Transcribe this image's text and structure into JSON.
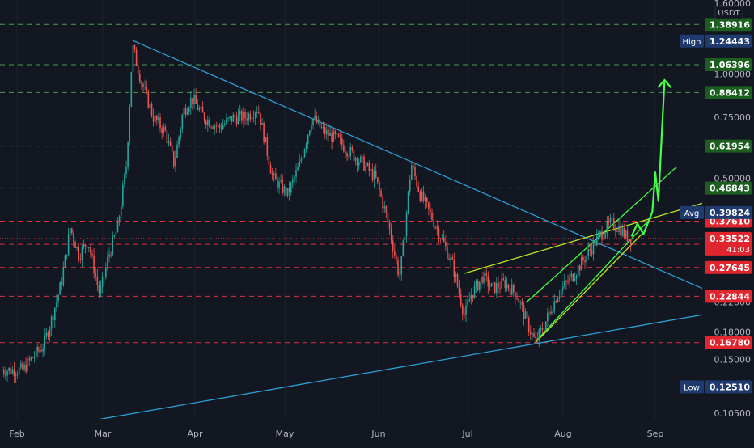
{
  "chart_data": {
    "type": "candlestick",
    "currency": "USDT",
    "scale": "log",
    "ylim": [
      0.1,
      1.6
    ],
    "x_ticks": [
      "Feb",
      "Mar",
      "Apr",
      "May",
      "Jun",
      "Jul",
      "Aug",
      "Sep"
    ],
    "y_ticks": [
      "1.60000",
      "1.00000",
      "0.75000",
      "0.50000",
      "0.22000",
      "0.18000",
      "0.15000",
      "0.10500"
    ],
    "y_tick_values": [
      1.6,
      1.0,
      0.75,
      0.5,
      0.22,
      0.18,
      0.15,
      0.105
    ],
    "price_path": [
      [
        "2024-01-27",
        0.14
      ],
      [
        "2024-02-03",
        0.14
      ],
      [
        "2024-02-07",
        0.155
      ],
      [
        "2024-02-10",
        0.165
      ],
      [
        "2024-02-13",
        0.2
      ],
      [
        "2024-02-16",
        0.25
      ],
      [
        "2024-02-19",
        0.36
      ],
      [
        "2024-02-22",
        0.3
      ],
      [
        "2024-02-25",
        0.33
      ],
      [
        "2024-02-29",
        0.23
      ],
      [
        "2024-03-03",
        0.3
      ],
      [
        "2024-03-06",
        0.36
      ],
      [
        "2024-03-09",
        0.55
      ],
      [
        "2024-03-11",
        1.2
      ],
      [
        "2024-03-14",
        0.95
      ],
      [
        "2024-03-18",
        0.75
      ],
      [
        "2024-03-22",
        0.68
      ],
      [
        "2024-03-25",
        0.55
      ],
      [
        "2024-03-28",
        0.78
      ],
      [
        "2024-03-31",
        0.85
      ],
      [
        "2024-04-04",
        0.75
      ],
      [
        "2024-04-09",
        0.7
      ],
      [
        "2024-04-14",
        0.75
      ],
      [
        "2024-04-18",
        0.75
      ],
      [
        "2024-04-22",
        0.8
      ],
      [
        "2024-04-27",
        0.5
      ],
      [
        "2024-05-02",
        0.45
      ],
      [
        "2024-05-06",
        0.55
      ],
      [
        "2024-05-10",
        0.75
      ],
      [
        "2024-05-14",
        0.68
      ],
      [
        "2024-05-18",
        0.65
      ],
      [
        "2024-05-22",
        0.6
      ],
      [
        "2024-05-27",
        0.55
      ],
      [
        "2024-05-31",
        0.5
      ],
      [
        "2024-06-04",
        0.38
      ],
      [
        "2024-06-08",
        0.26
      ],
      [
        "2024-06-09",
        0.3
      ],
      [
        "2024-06-12",
        0.55
      ],
      [
        "2024-06-15",
        0.45
      ],
      [
        "2024-06-18",
        0.4
      ],
      [
        "2024-06-22",
        0.34
      ],
      [
        "2024-06-26",
        0.28
      ],
      [
        "2024-06-30",
        0.2
      ],
      [
        "2024-07-02",
        0.23
      ],
      [
        "2024-07-06",
        0.26
      ],
      [
        "2024-07-09",
        0.24
      ],
      [
        "2024-07-13",
        0.25
      ],
      [
        "2024-07-17",
        0.23
      ],
      [
        "2024-07-21",
        0.185
      ],
      [
        "2024-07-23",
        0.168
      ],
      [
        "2024-07-26",
        0.19
      ],
      [
        "2024-07-30",
        0.23
      ],
      [
        "2024-08-04",
        0.26
      ],
      [
        "2024-08-09",
        0.3
      ],
      [
        "2024-08-13",
        0.34
      ],
      [
        "2024-08-17",
        0.37
      ],
      [
        "2024-08-20",
        0.36
      ],
      [
        "2024-08-22",
        0.34
      ],
      [
        "2024-08-24",
        0.335
      ]
    ],
    "horizontal_levels": [
      {
        "label": "1.38916",
        "value": 1.38916,
        "style": "dashed",
        "color": "#4caf50",
        "tag": "#1b5e20"
      },
      {
        "label": "1.06396",
        "value": 1.06396,
        "style": "dashed",
        "color": "#4caf50",
        "tag": "#1b5e20"
      },
      {
        "label": "0.88412",
        "value": 0.88412,
        "style": "dashed",
        "color": "#4caf50",
        "tag": "#1b5e20"
      },
      {
        "label": "0.61954",
        "value": 0.61954,
        "style": "dashed",
        "color": "#4caf50",
        "tag": "#1b5e20"
      },
      {
        "label": "0.46843",
        "value": 0.46843,
        "style": "dashed",
        "color": "#4caf50",
        "tag": "#1b5e20"
      },
      {
        "label": "0.37610",
        "value": 0.3761,
        "style": "dashed",
        "color": "#f23645",
        "tag": "#e0252f"
      },
      {
        "label": "0.32240",
        "value": 0.3224,
        "style": "dashed",
        "color": "#f23645",
        "tag": "#e0252f"
      },
      {
        "label": "0.27645",
        "value": 0.27645,
        "style": "dashed",
        "color": "#f23645",
        "tag": "#e0252f"
      },
      {
        "label": "0.22844",
        "value": 0.22844,
        "style": "dashed",
        "color": "#f23645",
        "tag": "#e0252f"
      },
      {
        "label": "0.16780",
        "value": 0.1678,
        "style": "dashed",
        "color": "#f23645",
        "tag": "#e0252f"
      }
    ],
    "markers": [
      {
        "name": "High",
        "label": "1.24443",
        "value": 1.24443
      },
      {
        "name": "Avg",
        "label": "0.39824",
        "value": 0.39824
      },
      {
        "name": "Low",
        "label": "0.12510",
        "value": 0.1251
      }
    ],
    "current_price": {
      "label": "0.33522",
      "value": 0.33522,
      "countdown": "41:03"
    },
    "trendlines": [
      {
        "name": "descending-resistance",
        "color": "#2a9fd6",
        "from": [
          "2024-03-11",
          1.25
        ],
        "to": [
          "2024-09-30",
          0.213
        ]
      },
      {
        "name": "ascending-support",
        "color": "#2a9fd6",
        "from": [
          "2024-02-16",
          0.0965
        ],
        "to": [
          "2024-09-30",
          0.212
        ]
      },
      {
        "name": "wedge-upper",
        "color": "#b5e61d",
        "from": [
          "2024-06-30",
          0.266
        ],
        "to": [
          "2024-09-30",
          0.46
        ]
      },
      {
        "name": "wedge-lower",
        "color": "#b5e61d",
        "from": [
          "2024-07-23",
          0.1678
        ],
        "to": [
          "2024-08-28",
          0.349
        ]
      },
      {
        "name": "channel-upper",
        "color": "#44ff44",
        "from": [
          "2024-07-20",
          0.219
        ],
        "to": [
          "2024-09-08",
          0.54
        ]
      },
      {
        "name": "channel-lower",
        "color": "#44ff44",
        "from": [
          "2024-07-23",
          0.169
        ],
        "to": [
          "2024-08-30",
          0.38
        ]
      }
    ],
    "projection": {
      "color": "#44ff44",
      "points": [
        [
          "2024-08-24",
          0.34
        ],
        [
          "2024-08-26",
          0.37
        ],
        [
          "2024-08-28",
          0.345
        ],
        [
          "2024-08-31",
          0.4
        ],
        [
          "2024-09-01",
          0.52
        ],
        [
          "2024-09-02",
          0.43
        ],
        [
          "2024-09-04",
          0.96
        ]
      ]
    }
  }
}
